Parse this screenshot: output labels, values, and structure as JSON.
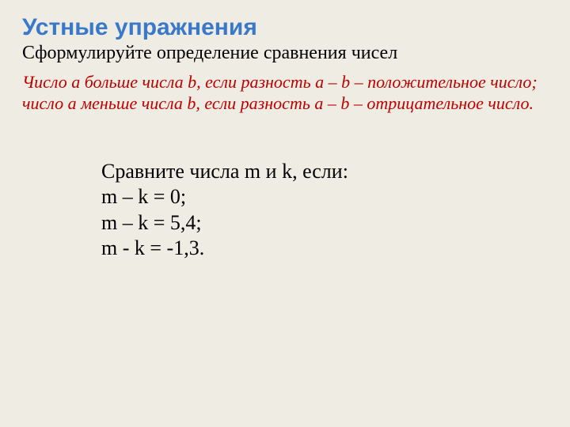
{
  "title": "Устные упражнения",
  "subtitle": "Сформулируйте определение сравнения чисел",
  "definition": {
    "line1": "Число а больше числа b, если разность а – b – положительное число;",
    "line2": "число а меньше числа b, если разность а – b – отрицательное число."
  },
  "task": {
    "prompt": "Сравните числа  m и k, если:",
    "line1": "m – k = 0;",
    "line2": "m – k = 5,4;",
    "line3": "m - k  = -1,3."
  },
  "colors": {
    "background": "#efece3",
    "title": "#3a78c9",
    "definition": "#c00000",
    "body_text": "#000000"
  }
}
